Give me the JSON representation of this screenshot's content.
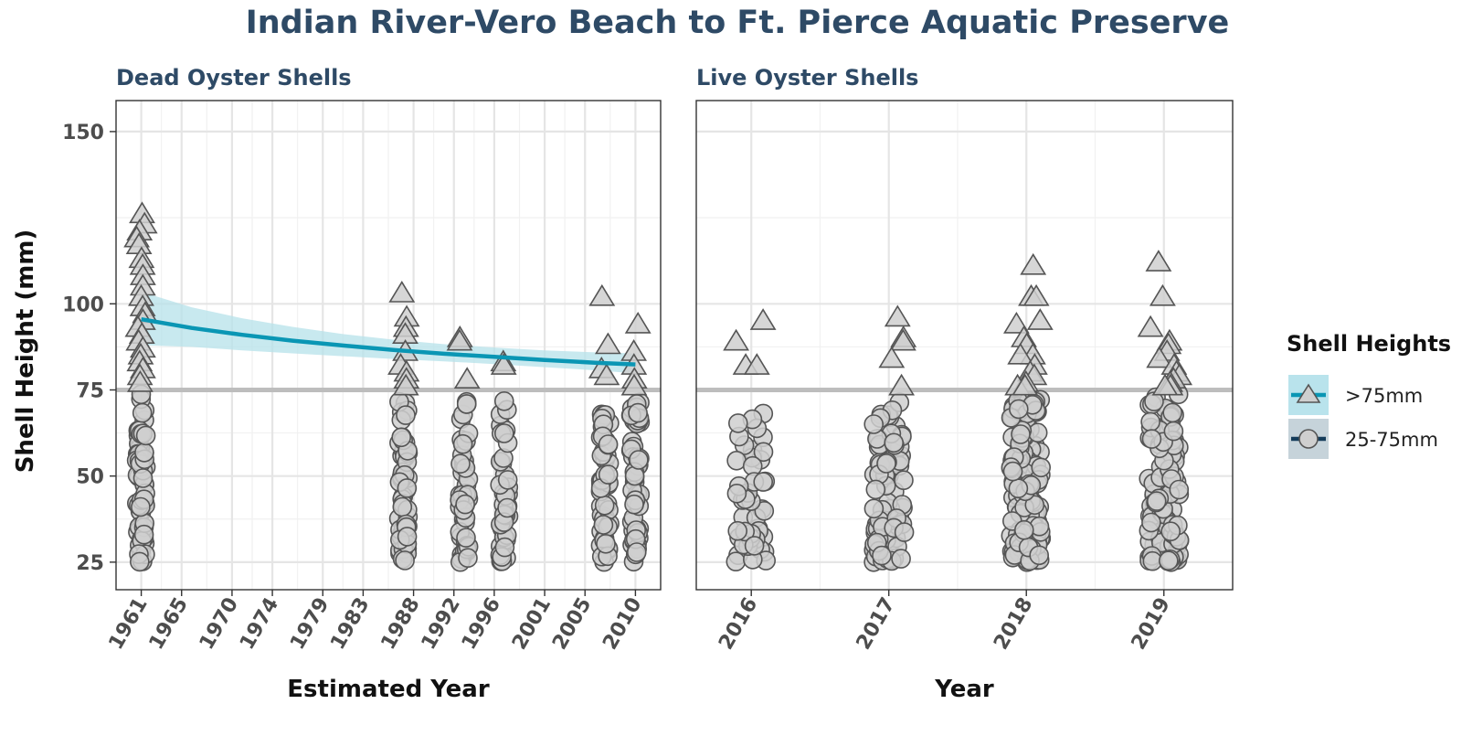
{
  "chart_data": {
    "type": "scatter",
    "title": "Indian River-Vero Beach to Ft. Pierce Aquatic Preserve",
    "ylabel": "Shell Height (mm)",
    "ylim": [
      17,
      159
    ],
    "y_ticks": [
      "25",
      "50",
      "75",
      "100",
      "150"
    ],
    "y_tick_values": [
      25,
      50,
      75,
      100,
      150
    ],
    "reference_line": 75,
    "reference_line_color": "#bdbdbd",
    "grid": true,
    "legend_placement": "right",
    "legend": {
      "title": "Shell Heights",
      "items": [
        {
          "label": ">75mm",
          "shape": "triangle",
          "line_color": "#0a96b4",
          "fill": "#b9e3ec"
        },
        {
          "label": "25-75mm",
          "shape": "circle",
          "line_color": "#143c5a",
          "fill": "#c6d3da"
        }
      ]
    },
    "colors": {
      "title": "#2e4a66",
      "point_fill": "#cfcfcf",
      "point_stroke": "#555555",
      "trend": "#0a96b4",
      "ribbon": "#b5e1ea"
    },
    "panels": [
      {
        "subtitle": "Dead Oyster Shells",
        "xlabel": "Estimated Year",
        "xlim": [
          1958.5,
          2012.5
        ],
        "x_ticks": [
          "1961",
          "1965",
          "1970",
          "1974",
          "1979",
          "1983",
          "1988",
          "1992",
          "1996",
          "2001",
          "2005",
          "2010"
        ],
        "x_tick_values": [
          1961,
          1965,
          1970,
          1974,
          1979,
          1983,
          1988,
          1992,
          1996,
          2001,
          2005,
          2010
        ],
        "groups": [
          {
            "x": 1961,
            "above_75": [
              126,
              123,
              121,
              119,
              117,
              113,
              111,
              108,
              105,
              102,
              99,
              97,
              95,
              93,
              91,
              89,
              87,
              85,
              83,
              81,
              79,
              77
            ],
            "n_25_75": 60,
            "range_25_75": [
              25,
              74
            ]
          },
          {
            "x": 1987,
            "above_75": [
              103,
              96,
              93,
              91,
              86,
              82,
              80,
              78,
              76
            ],
            "n_25_75": 55,
            "range_25_75": [
              25,
              73
            ]
          },
          {
            "x": 1993,
            "above_75": [
              90,
              89,
              78
            ],
            "n_25_75": 45,
            "range_25_75": [
              25,
              72
            ]
          },
          {
            "x": 1997,
            "above_75": [
              83,
              82
            ],
            "n_25_75": 40,
            "range_25_75": [
              25,
              74
            ]
          },
          {
            "x": 2007,
            "above_75": [
              102,
              88,
              81,
              79
            ],
            "n_25_75": 50,
            "range_25_75": [
              25,
              70
            ]
          },
          {
            "x": 2010,
            "above_75": [
              94,
              86,
              82,
              78,
              76
            ],
            "n_25_75": 55,
            "range_25_75": [
              25,
              72
            ]
          }
        ],
        "trend": {
          "x": [
            1961,
            1966,
            1971,
            1976,
            1981,
            1986,
            1991,
            1996,
            2001,
            2006,
            2010
          ],
          "y": [
            95.5,
            93.0,
            91.0,
            89.3,
            87.9,
            86.6,
            85.5,
            84.6,
            83.7,
            82.9,
            82.4
          ],
          "lower": [
            88.0,
            87.5,
            86.5,
            85.6,
            84.8,
            84.0,
            83.3,
            82.5,
            81.6,
            80.7,
            79.8
          ],
          "upper": [
            103.5,
            99.0,
            95.8,
            93.3,
            91.2,
            89.6,
            88.3,
            87.3,
            86.5,
            85.9,
            85.6
          ]
        }
      },
      {
        "subtitle": "Live Oyster Shells",
        "xlabel": "Year",
        "xlim": [
          2015.6,
          2019.5
        ],
        "x_ticks": [
          "2016",
          "2017",
          "2018",
          "2019"
        ],
        "x_tick_values": [
          2016,
          2017,
          2018,
          2019
        ],
        "groups": [
          {
            "x": 2016,
            "above_75": [
              95,
              89,
              82,
              82
            ],
            "n_25_75": 45,
            "range_25_75": [
              25,
              70
            ]
          },
          {
            "x": 2017,
            "above_75": [
              96,
              90,
              89,
              84,
              76
            ],
            "n_25_75": 75,
            "range_25_75": [
              25,
              74
            ]
          },
          {
            "x": 2018,
            "above_75": [
              111,
              102,
              102,
              95,
              94,
              90,
              88,
              85,
              85,
              82,
              80,
              79,
              77,
              76,
              76
            ],
            "n_25_75": 150,
            "range_25_75": [
              25,
              74
            ]
          },
          {
            "x": 2019,
            "above_75": [
              112,
              102,
              93,
              89,
              88,
              86,
              84,
              82,
              80,
              79,
              78,
              77,
              76,
              76
            ],
            "n_25_75": 110,
            "range_25_75": [
              25,
              74
            ]
          }
        ]
      }
    ]
  }
}
